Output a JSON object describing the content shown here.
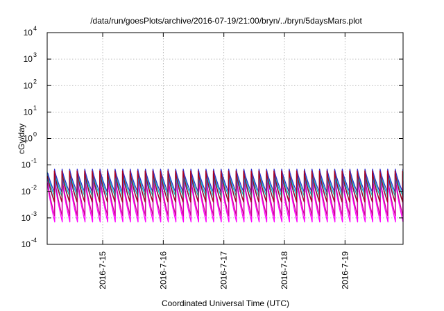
{
  "chart_data": {
    "type": "line",
    "title": "/data/run/goesPlots/archive/2016-07-19/21:00/bryn/../bryn/5daysMars.plot",
    "xlabel": "Coordinated Universal Time (UTC)",
    "ylabel": "cGy/day",
    "yscale": "log",
    "ylim": [
      0.0001,
      10000
    ],
    "xlim": [
      "2016-07-14 02:00",
      "2016-07-19 23:00"
    ],
    "x_ticks": [
      "2016-7-15",
      "2016-7-16",
      "2016-7-17",
      "2016-7-18",
      "2016-7-19"
    ],
    "y_ticks": [
      {
        "base": "10",
        "exp": "-4"
      },
      {
        "base": "10",
        "exp": "-3"
      },
      {
        "base": "10",
        "exp": "-2"
      },
      {
        "base": "10",
        "exp": "-1"
      },
      {
        "base": "10",
        "exp": "0"
      },
      {
        "base": "10",
        "exp": "1"
      },
      {
        "base": "10",
        "exp": "2"
      },
      {
        "base": "10",
        "exp": "3"
      },
      {
        "base": "10",
        "exp": "4"
      }
    ],
    "grid": true,
    "pattern": {
      "type": "sawtooth",
      "period_hours": 3,
      "peak_at": "start of each period"
    },
    "series": [
      {
        "color": "#ff00ff",
        "peak": 0.025,
        "trough": 0.0007
      },
      {
        "color": "#d0009a",
        "peak": 0.035,
        "trough": 0.0012
      },
      {
        "color": "#0f6fd8",
        "peak": 0.045,
        "trough": 0.004
      },
      {
        "color": "#00c8c0",
        "peak": 0.055,
        "trough": 0.006
      },
      {
        "color": "#2f2fd0",
        "peak": 0.07,
        "trough": 0.009
      },
      {
        "color": "#b0001e",
        "peak": 0.06,
        "trough": 0.004
      }
    ]
  }
}
